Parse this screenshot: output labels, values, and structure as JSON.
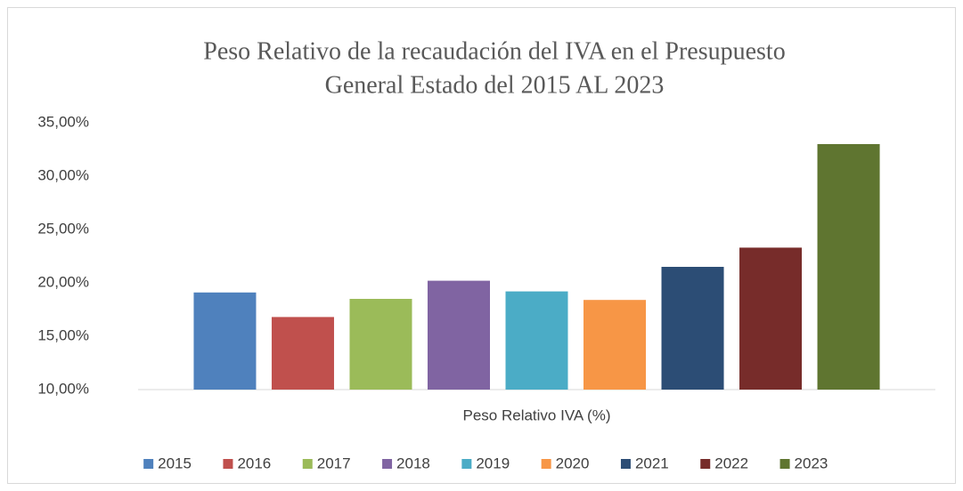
{
  "chart_data": {
    "type": "bar",
    "title": [
      "Peso Relativo de la recaudación del IVA en el Presupuesto",
      "General Estado del 2015 AL 2023"
    ],
    "categories": [
      "Peso Relativo IVA (%)"
    ],
    "series": [
      {
        "name": "2015",
        "color": "#4f81bd",
        "values": [
          19.1
        ]
      },
      {
        "name": "2016",
        "color": "#c0504d",
        "values": [
          16.8
        ]
      },
      {
        "name": "2017",
        "color": "#9bbb59",
        "values": [
          18.5
        ]
      },
      {
        "name": "2018",
        "color": "#8064a2",
        "values": [
          20.2
        ]
      },
      {
        "name": "2019",
        "color": "#4bacc6",
        "values": [
          19.2
        ]
      },
      {
        "name": "2020",
        "color": "#f79646",
        "values": [
          18.4
        ]
      },
      {
        "name": "2021",
        "color": "#2c4d75",
        "values": [
          21.5
        ]
      },
      {
        "name": "2022",
        "color": "#772c2a",
        "values": [
          23.3
        ]
      },
      {
        "name": "2023",
        "color": "#5f7530",
        "values": [
          33.0
        ]
      }
    ],
    "ylim": [
      10,
      35
    ],
    "yticks": [
      {
        "value": 10,
        "label": "10,00%"
      },
      {
        "value": 15,
        "label": "15,00%"
      },
      {
        "value": 20,
        "label": "20,00%"
      },
      {
        "value": 25,
        "label": "25,00%"
      },
      {
        "value": 30,
        "label": "30,00%"
      },
      {
        "value": 35,
        "label": "35,00%"
      }
    ],
    "grid": false,
    "legend": "bottom"
  }
}
